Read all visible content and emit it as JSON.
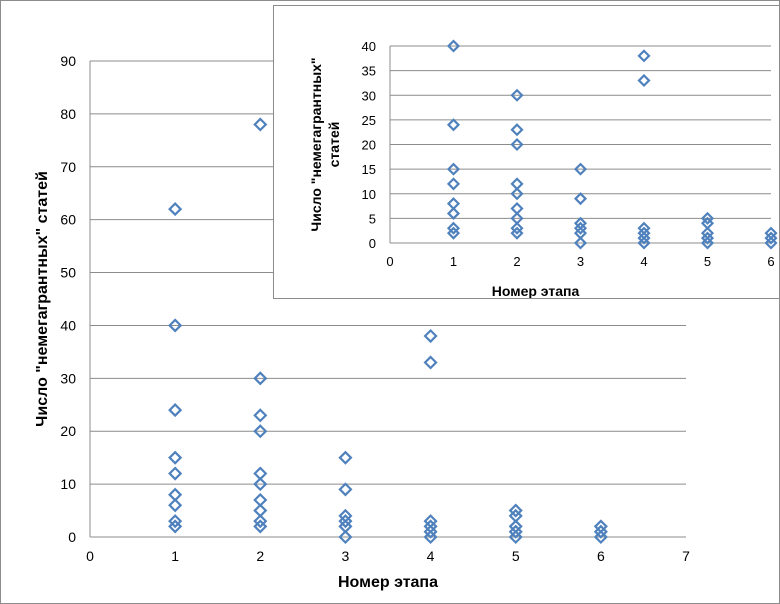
{
  "chart_data": [
    {
      "type": "scatter",
      "xlabel": "Номер этапа",
      "ylabel": "Число \"немегагрантных\" статей",
      "xlim": [
        0,
        7
      ],
      "ylim": [
        0,
        90
      ],
      "x_ticks": [
        "0",
        "1",
        "2",
        "3",
        "4",
        "5",
        "6",
        "7"
      ],
      "y_ticks": [
        "0",
        "10",
        "20",
        "30",
        "40",
        "50",
        "60",
        "70",
        "80",
        "90"
      ],
      "grid": "horizontal",
      "marker": "diamond",
      "color": "#4f81bd",
      "points": [
        {
          "x": 1,
          "y": 62
        },
        {
          "x": 1,
          "y": 40
        },
        {
          "x": 1,
          "y": 24
        },
        {
          "x": 1,
          "y": 15
        },
        {
          "x": 1,
          "y": 12
        },
        {
          "x": 1,
          "y": 8
        },
        {
          "x": 1,
          "y": 6
        },
        {
          "x": 1,
          "y": 3
        },
        {
          "x": 1,
          "y": 2
        },
        {
          "x": 2,
          "y": 78
        },
        {
          "x": 2,
          "y": 30
        },
        {
          "x": 2,
          "y": 23
        },
        {
          "x": 2,
          "y": 20
        },
        {
          "x": 2,
          "y": 12
        },
        {
          "x": 2,
          "y": 10
        },
        {
          "x": 2,
          "y": 7
        },
        {
          "x": 2,
          "y": 5
        },
        {
          "x": 2,
          "y": 3
        },
        {
          "x": 2,
          "y": 2
        },
        {
          "x": 3,
          "y": 15
        },
        {
          "x": 3,
          "y": 9
        },
        {
          "x": 3,
          "y": 4
        },
        {
          "x": 3,
          "y": 3
        },
        {
          "x": 3,
          "y": 2
        },
        {
          "x": 3,
          "y": 0
        },
        {
          "x": 4,
          "y": 38
        },
        {
          "x": 4,
          "y": 33
        },
        {
          "x": 4,
          "y": 3
        },
        {
          "x": 4,
          "y": 2
        },
        {
          "x": 4,
          "y": 1
        },
        {
          "x": 4,
          "y": 0
        },
        {
          "x": 5,
          "y": 5
        },
        {
          "x": 5,
          "y": 4
        },
        {
          "x": 5,
          "y": 2
        },
        {
          "x": 5,
          "y": 1
        },
        {
          "x": 5,
          "y": 0
        },
        {
          "x": 6,
          "y": 2
        },
        {
          "x": 6,
          "y": 1
        },
        {
          "x": 6,
          "y": 0
        }
      ]
    },
    {
      "type": "scatter",
      "xlabel": "Номер этапа",
      "ylabel_lines": [
        "Число \"немегагрантных\"",
        "статей"
      ],
      "xlim": [
        0,
        6
      ],
      "ylim": [
        0,
        40
      ],
      "x_ticks": [
        "0",
        "1",
        "2",
        "3",
        "4",
        "5",
        "6"
      ],
      "y_ticks": [
        "0",
        "5",
        "10",
        "15",
        "20",
        "25",
        "30",
        "35",
        "40"
      ],
      "grid": "horizontal",
      "marker": "diamond",
      "color": "#4f81bd",
      "points": [
        {
          "x": 1,
          "y": 40
        },
        {
          "x": 1,
          "y": 24
        },
        {
          "x": 1,
          "y": 15
        },
        {
          "x": 1,
          "y": 12
        },
        {
          "x": 1,
          "y": 8
        },
        {
          "x": 1,
          "y": 6
        },
        {
          "x": 1,
          "y": 3
        },
        {
          "x": 1,
          "y": 2
        },
        {
          "x": 2,
          "y": 30
        },
        {
          "x": 2,
          "y": 23
        },
        {
          "x": 2,
          "y": 20
        },
        {
          "x": 2,
          "y": 12
        },
        {
          "x": 2,
          "y": 10
        },
        {
          "x": 2,
          "y": 7
        },
        {
          "x": 2,
          "y": 5
        },
        {
          "x": 2,
          "y": 3
        },
        {
          "x": 2,
          "y": 2
        },
        {
          "x": 3,
          "y": 15
        },
        {
          "x": 3,
          "y": 9
        },
        {
          "x": 3,
          "y": 4
        },
        {
          "x": 3,
          "y": 3
        },
        {
          "x": 3,
          "y": 2
        },
        {
          "x": 3,
          "y": 0
        },
        {
          "x": 4,
          "y": 38
        },
        {
          "x": 4,
          "y": 33
        },
        {
          "x": 4,
          "y": 3
        },
        {
          "x": 4,
          "y": 2
        },
        {
          "x": 4,
          "y": 1
        },
        {
          "x": 4,
          "y": 0
        },
        {
          "x": 5,
          "y": 5
        },
        {
          "x": 5,
          "y": 4
        },
        {
          "x": 5,
          "y": 2
        },
        {
          "x": 5,
          "y": 1
        },
        {
          "x": 5,
          "y": 0
        },
        {
          "x": 6,
          "y": 2
        },
        {
          "x": 6,
          "y": 1
        },
        {
          "x": 6,
          "y": 0
        }
      ]
    }
  ]
}
